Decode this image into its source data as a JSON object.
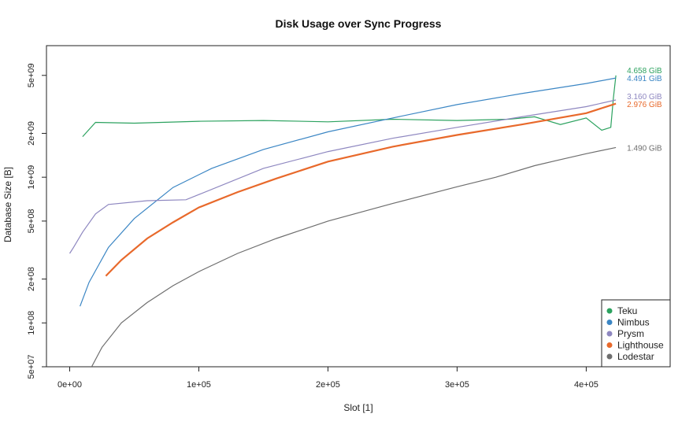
{
  "chart_data": {
    "type": "line",
    "title": "Disk Usage over Sync Progress",
    "xlabel": "Slot [1]",
    "ylabel": "Database Size [B]",
    "xlim": [
      -18000,
      465000
    ],
    "ylim": [
      50000000,
      8000000000
    ],
    "yscale": "log",
    "x_ticks": [
      0,
      100000,
      200000,
      300000,
      400000
    ],
    "x_tick_labels": [
      "0e+00",
      "1e+05",
      "2e+05",
      "3e+05",
      "4e+05"
    ],
    "y_ticks": [
      50000000,
      100000000,
      200000000,
      500000000,
      1000000000,
      2000000000,
      5000000000
    ],
    "y_tick_labels": [
      "5e+07",
      "1e+08",
      "2e+08",
      "5e+08",
      "1e+09",
      "2e+09",
      "5e+09"
    ],
    "legend": {
      "position": "bottom-right"
    },
    "series": [
      {
        "name": "Teku",
        "color": "#2ca25f",
        "end_label": "4.658 GiB",
        "x": [
          10000,
          20000,
          50000,
          100000,
          150000,
          200000,
          250000,
          300000,
          340000,
          360000,
          380000,
          400000,
          412000,
          419000,
          421000,
          423000
        ],
        "y": [
          1900000000,
          2380000000,
          2350000000,
          2420000000,
          2450000000,
          2400000000,
          2500000000,
          2450000000,
          2500000000,
          2600000000,
          2300000000,
          2550000000,
          2100000000,
          2200000000,
          3500000000,
          5000000000
        ]
      },
      {
        "name": "Nimbus",
        "color": "#3b86c4",
        "end_label": "4.491 GiB",
        "x": [
          8000,
          15000,
          30000,
          50000,
          80000,
          110000,
          150000,
          200000,
          250000,
          300000,
          350000,
          400000,
          423000
        ],
        "y": [
          130000000,
          190000000,
          330000000,
          520000000,
          850000000,
          1150000000,
          1550000000,
          2050000000,
          2550000000,
          3150000000,
          3750000000,
          4400000000,
          4800000000
        ]
      },
      {
        "name": "Prysm",
        "color": "#8e87c0",
        "end_label": "3.160 GiB",
        "x": [
          0,
          3000,
          10000,
          20000,
          30000,
          60000,
          90000,
          100000,
          150000,
          200000,
          250000,
          300000,
          350000,
          400000,
          423000
        ],
        "y": [
          300000000,
          330000000,
          420000000,
          560000000,
          650000000,
          690000000,
          700000000,
          760000000,
          1150000000,
          1500000000,
          1850000000,
          2200000000,
          2600000000,
          3050000000,
          3390000000
        ]
      },
      {
        "name": "Lighthouse",
        "color": "#e8692b",
        "end_label": "2.976 GiB",
        "x": [
          28000,
          40000,
          60000,
          80000,
          100000,
          130000,
          160000,
          200000,
          250000,
          300000,
          350000,
          400000,
          423000
        ],
        "y": [
          210000000,
          270000000,
          380000000,
          490000000,
          620000000,
          790000000,
          980000000,
          1280000000,
          1620000000,
          1950000000,
          2300000000,
          2750000000,
          3200000000
        ]
      },
      {
        "name": "Lodestar",
        "color": "#6e6e6e",
        "end_label": "1.490 GiB",
        "x": [
          17000,
          25000,
          40000,
          60000,
          80000,
          100000,
          130000,
          160000,
          200000,
          250000,
          300000,
          330000,
          360000,
          380000,
          400000,
          423000
        ],
        "y": [
          50000000,
          68000000,
          100000000,
          138000000,
          180000000,
          225000000,
          300000000,
          380000000,
          500000000,
          660000000,
          860000000,
          1000000000,
          1200000000,
          1320000000,
          1450000000,
          1600000000
        ]
      }
    ]
  }
}
